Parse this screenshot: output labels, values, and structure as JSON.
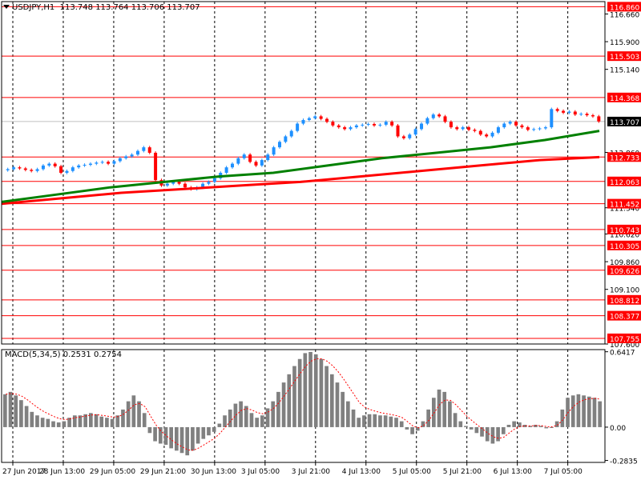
{
  "symbol_header": {
    "symbol": "USDJPY,H1",
    "ohlc": "113.748 113.764 113.706 113.707"
  },
  "macd_header": {
    "name": "MACD(5,34,5)",
    "values": "0.2531 0.2754"
  },
  "colors": {
    "grid": "#000000",
    "level_line": "#ff0000",
    "candle_up": "#1e90ff",
    "candle_down": "#ff0000",
    "ma_slow": "#ff0000",
    "ma_fast": "#008000",
    "macd_hist": "#808080",
    "macd_signal": "#ff0000",
    "price_label_bg": "#ff0000",
    "current_price_bg": "#000000"
  },
  "chart_data": [
    {
      "type": "candlestick",
      "title": "USDJPY,H1",
      "ylim": [
        107.6,
        117.0
      ],
      "y_ticks": [
        "116.660",
        "115.900",
        "115.140",
        "112.860",
        "111.340",
        "110.620",
        "109.860",
        "109.100",
        "107.600"
      ],
      "x_ticks": [
        "27 Jun 2017",
        "28 Jun 13:00",
        "29 Jun 05:00",
        "29 Jun 21:00",
        "30 Jun 13:00",
        "3 Jul 05:00",
        "3 Jul 21:00",
        "4 Jul 13:00",
        "5 Jul 05:00",
        "5 Jul 21:00",
        "6 Jul 13:00",
        "7 Jul 05:00"
      ],
      "levels": [
        "116.860",
        "115.503",
        "114.368",
        "112.733",
        "112.063",
        "111.452",
        "110.743",
        "110.305",
        "109.626",
        "108.812",
        "108.377",
        "107.755"
      ],
      "current_price": "113.707",
      "close_series": [
        112.4,
        112.45,
        112.42,
        112.38,
        112.35,
        112.4,
        112.5,
        112.55,
        112.48,
        112.3,
        112.35,
        112.45,
        112.5,
        112.52,
        112.55,
        112.58,
        112.6,
        112.55,
        112.62,
        112.7,
        112.75,
        112.8,
        112.9,
        113.0,
        112.85,
        112.1,
        111.95,
        112.0,
        112.05,
        112.0,
        111.9,
        111.85,
        111.9,
        112.0,
        112.05,
        112.15,
        112.3,
        112.45,
        112.55,
        112.7,
        112.8,
        112.6,
        112.5,
        112.65,
        112.8,
        113.0,
        113.15,
        113.3,
        113.45,
        113.65,
        113.75,
        113.8,
        113.85,
        113.78,
        113.7,
        113.6,
        113.55,
        113.5,
        113.55,
        113.6,
        113.62,
        113.64,
        113.6,
        113.62,
        113.7,
        113.6,
        113.3,
        113.25,
        113.35,
        113.5,
        113.65,
        113.8,
        113.9,
        113.85,
        113.7,
        113.55,
        113.5,
        113.55,
        113.48,
        113.45,
        113.35,
        113.3,
        113.4,
        113.55,
        113.65,
        113.7,
        113.6,
        113.55,
        113.48,
        113.5,
        113.52,
        113.55,
        114.05,
        114.0,
        113.95,
        113.98,
        113.9,
        113.92,
        113.88,
        113.85,
        113.71
      ],
      "series": [
        {
          "name": "",
          "role": "ma_slow",
          "values": [
            111.45,
            111.6,
            111.75,
            111.85,
            111.95,
            112.05,
            112.2,
            112.35,
            112.5,
            112.65,
            112.73
          ]
        },
        {
          "name": "",
          "role": "ma_fast",
          "values": [
            111.5,
            111.7,
            111.9,
            112.05,
            112.2,
            112.3,
            112.5,
            112.7,
            112.85,
            113.0,
            113.2,
            113.45
          ]
        }
      ]
    },
    {
      "type": "bar",
      "title": "MACD(5,34,5)",
      "ylim": [
        -0.3,
        0.66
      ],
      "y_ticks": [
        "0.6417",
        "0.00",
        "-0.2835"
      ],
      "values": [
        0.28,
        0.3,
        0.27,
        0.23,
        0.18,
        0.13,
        0.1,
        0.08,
        0.07,
        0.05,
        0.04,
        0.05,
        0.08,
        0.1,
        0.1,
        0.11,
        0.12,
        0.11,
        0.09,
        0.08,
        0.07,
        0.1,
        0.15,
        0.22,
        0.27,
        0.22,
        0.12,
        -0.05,
        -0.12,
        -0.14,
        -0.15,
        -0.18,
        -0.2,
        -0.22,
        -0.24,
        -0.2,
        -0.14,
        -0.1,
        -0.07,
        -0.04,
        0.03,
        0.1,
        0.15,
        0.2,
        0.22,
        0.18,
        0.12,
        0.08,
        0.1,
        0.16,
        0.22,
        0.3,
        0.38,
        0.45,
        0.52,
        0.58,
        0.63,
        0.64,
        0.62,
        0.58,
        0.52,
        0.45,
        0.38,
        0.3,
        0.22,
        0.15,
        0.08,
        0.1,
        0.11,
        0.11,
        0.1,
        0.1,
        0.09,
        0.08,
        0.05,
        -0.02,
        -0.06,
        -0.03,
        0.05,
        0.15,
        0.25,
        0.32,
        0.3,
        0.22,
        0.12,
        0.05,
        0.01,
        -0.02,
        -0.05,
        -0.08,
        -0.12,
        -0.14,
        -0.12,
        -0.06,
        0.02,
        0.05,
        0.04,
        0.02,
        0.01,
        0.02,
        0.01,
        -0.01,
        0.0,
        0.05,
        0.15,
        0.25,
        0.27,
        0.28,
        0.27,
        0.26,
        0.25,
        0.22
      ]
    }
  ]
}
